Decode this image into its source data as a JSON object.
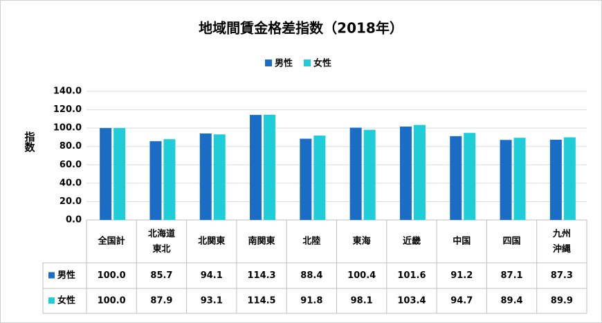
{
  "chart_data": {
    "type": "bar",
    "title": "地域間賃金格差指数（2018年）",
    "ylabel": "指数",
    "categories": [
      "全国計",
      "北海道\n東北",
      "北関東",
      "南関東",
      "北陸",
      "東海",
      "近畿",
      "中国",
      "四国",
      "九州\n沖縄"
    ],
    "series": [
      {
        "name": "男性",
        "color": "#1a6cc4",
        "values": [
          100.0,
          85.7,
          94.1,
          114.3,
          88.4,
          100.4,
          101.6,
          91.2,
          87.1,
          87.3
        ],
        "value_labels": [
          "100.0",
          "85.7",
          "94.1",
          "114.3",
          "88.4",
          "100.4",
          "101.6",
          "91.2",
          "87.1",
          "87.3"
        ]
      },
      {
        "name": "女性",
        "color": "#1fcdd9",
        "values": [
          100.0,
          87.9,
          93.1,
          114.5,
          91.8,
          98.1,
          103.4,
          94.7,
          89.4,
          89.9
        ],
        "value_labels": [
          "100.0",
          "87.9",
          "93.1",
          "114.5",
          "91.8",
          "98.1",
          "103.4",
          "94.7",
          "89.4",
          "89.9"
        ]
      }
    ],
    "ylim": [
      0,
      140
    ],
    "yticks": [
      {
        "value": 0,
        "label": "0.0"
      },
      {
        "value": 20,
        "label": "20.0"
      },
      {
        "value": 40,
        "label": "40.0"
      },
      {
        "value": 60,
        "label": "60.0"
      },
      {
        "value": 80,
        "label": "80.0"
      },
      {
        "value": 100,
        "label": "100.0"
      },
      {
        "value": 120,
        "label": "120.0"
      },
      {
        "value": 140,
        "label": "140.0"
      }
    ],
    "grid": true,
    "legend": "top"
  }
}
